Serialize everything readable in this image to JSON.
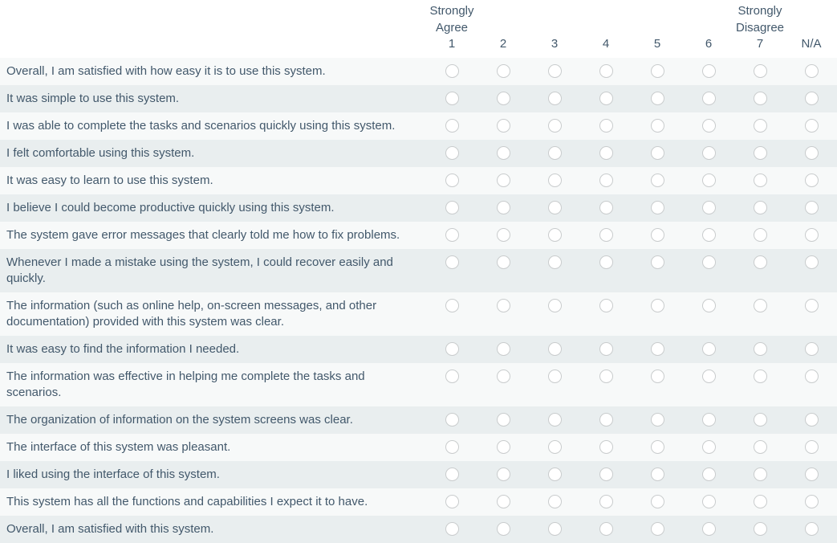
{
  "header": {
    "columns": [
      {
        "scale_line1": "Strongly",
        "scale_line2": "Agree",
        "value": "1"
      },
      {
        "value": "2"
      },
      {
        "value": "3"
      },
      {
        "value": "4"
      },
      {
        "value": "5"
      },
      {
        "value": "6"
      },
      {
        "scale_line1": "Strongly",
        "scale_line2": "Disagree",
        "value": "7"
      },
      {
        "value": "N/A"
      }
    ]
  },
  "questions": [
    {
      "label": "Overall, I am satisfied with how easy it is to use this system.",
      "selected": null
    },
    {
      "label": "It was simple to use this system.",
      "selected": null
    },
    {
      "label": "I was able to complete the tasks and scenarios quickly using this system.",
      "selected": null
    },
    {
      "label": "I felt comfortable using this system.",
      "selected": null
    },
    {
      "label": "It was easy to learn to use this system.",
      "selected": null
    },
    {
      "label": "I believe I could become productive quickly using this system.",
      "selected": null
    },
    {
      "label": "The system gave error messages that clearly told me how to fix problems.",
      "selected": null
    },
    {
      "label": "Whenever I made a mistake using the system, I could recover easily and quickly.",
      "selected": null
    },
    {
      "label": "The information (such as online help, on-screen messages, and other documentation) provided with this system was clear.",
      "selected": null
    },
    {
      "label": "It was easy to find the information I needed.",
      "selected": null
    },
    {
      "label": "The information was effective in helping me complete the tasks and scenarios.",
      "selected": null
    },
    {
      "label": "The organization of information on the system screens was clear.",
      "selected": null
    },
    {
      "label": "The interface of this system was pleasant.",
      "selected": null
    },
    {
      "label": "I liked using the interface of this system.",
      "selected": null
    },
    {
      "label": "This system has all the functions and capabilities I expect it to have.",
      "selected": null
    },
    {
      "label": "Overall, I am satisfied with this system.",
      "selected": null
    }
  ],
  "colors": {
    "background": "#ffffff",
    "text": "#42586b",
    "row_odd": "#f7f9f9",
    "row_even": "#e9eeef",
    "radio_border": "#c9cccd",
    "radio_fill": "#ffffff"
  }
}
